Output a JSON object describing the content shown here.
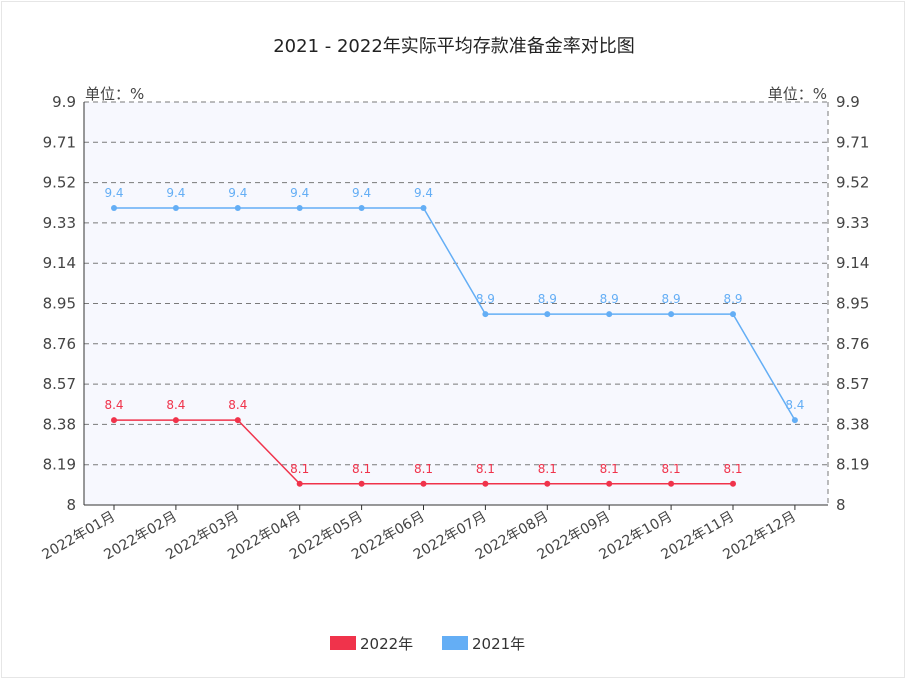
{
  "chart_data": {
    "type": "line",
    "title": "2021 - 2022年实际平均存款准备金率对比图",
    "y_unit_left": "单位：%",
    "y_unit_right": "单位：%",
    "ylim": [
      8,
      9.9
    ],
    "yticks": [
      "8",
      "8.19",
      "8.38",
      "8.57",
      "8.76",
      "8.95",
      "9.14",
      "9.33",
      "9.52",
      "9.71",
      "9.9"
    ],
    "categories": [
      "2022年01月",
      "2022年02月",
      "2022年03月",
      "2022年04月",
      "2022年05月",
      "2022年06月",
      "2022年07月",
      "2022年08月",
      "2022年09月",
      "2022年10月",
      "2022年11月",
      "2022年12月"
    ],
    "series": [
      {
        "name": "2022年",
        "color": "#f0334b",
        "values": [
          8.4,
          8.4,
          8.4,
          8.1,
          8.1,
          8.1,
          8.1,
          8.1,
          8.1,
          8.1,
          8.1,
          null
        ],
        "labels": [
          "8.4",
          "8.4",
          "8.4",
          "8.1",
          "8.1",
          "8.1",
          "8.1",
          "8.1",
          "8.1",
          "8.1",
          "8.1",
          null
        ]
      },
      {
        "name": "2021年",
        "color": "#64aef5",
        "values": [
          9.4,
          9.4,
          9.4,
          9.4,
          9.4,
          9.4,
          8.9,
          8.9,
          8.9,
          8.9,
          8.9,
          8.4
        ],
        "labels": [
          "9.4",
          "9.4",
          "9.4",
          "9.4",
          "9.4",
          "9.4",
          "8.9",
          "8.9",
          "8.9",
          "8.9",
          "8.9",
          "8.4"
        ]
      }
    ],
    "grid": true,
    "legend_position": "bottom-center",
    "plot_background": "#f7f8fe"
  }
}
